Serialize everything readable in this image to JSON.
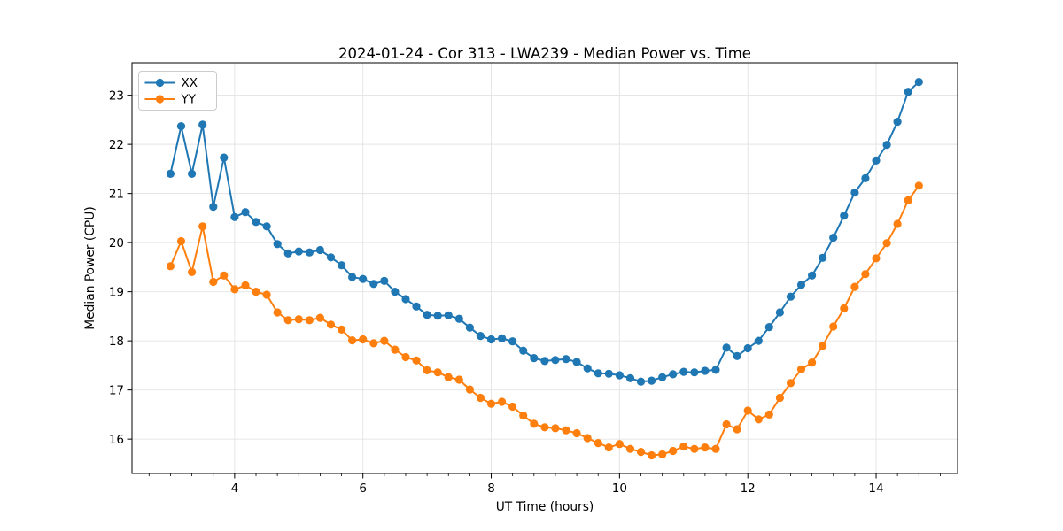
{
  "figure": {
    "title": "2024-01-24 - Cor 313 - LWA239 - Median Power vs. Time"
  },
  "chart_data": {
    "type": "line",
    "title": "2024-01-24 - Cor 313 - LWA239 - Median Power vs. Time",
    "xlabel": "UT Time (hours)",
    "ylabel": "Median Power (CPU)",
    "grid": true,
    "grid_color": "#e3e3e3",
    "background": "#ffffff",
    "legend_position": "upper-left",
    "marker": "circle",
    "xlim": [
      2.4,
      15.27
    ],
    "ylim": [
      15.3,
      23.66
    ],
    "xticks": [
      4,
      6,
      8,
      10,
      12,
      14
    ],
    "yticks": [
      16,
      17,
      18,
      19,
      20,
      21,
      22,
      23
    ],
    "x_minor_step": 0.33333,
    "x": [
      3.0,
      3.167,
      3.333,
      3.5,
      3.667,
      3.833,
      4.0,
      4.167,
      4.333,
      4.5,
      4.667,
      4.833,
      5.0,
      5.167,
      5.333,
      5.5,
      5.667,
      5.833,
      6.0,
      6.167,
      6.333,
      6.5,
      6.667,
      6.833,
      7.0,
      7.167,
      7.333,
      7.5,
      7.667,
      7.833,
      8.0,
      8.167,
      8.333,
      8.5,
      8.667,
      8.833,
      9.0,
      9.167,
      9.333,
      9.5,
      9.667,
      9.833,
      10.0,
      10.167,
      10.333,
      10.5,
      10.667,
      10.833,
      11.0,
      11.167,
      11.333,
      11.5,
      11.667,
      11.833,
      12.0,
      12.167,
      12.333,
      12.5,
      12.667,
      12.833,
      13.0,
      13.167,
      13.333,
      13.5,
      13.667,
      13.833,
      14.0,
      14.167,
      14.333,
      14.5,
      14.667
    ],
    "series": [
      {
        "name": "XX",
        "color": "#1f77b4",
        "values": [
          21.4,
          22.37,
          21.4,
          22.4,
          20.73,
          21.73,
          20.52,
          20.62,
          20.42,
          20.33,
          19.97,
          19.78,
          19.82,
          19.8,
          19.85,
          19.7,
          19.54,
          19.3,
          19.26,
          19.16,
          19.22,
          19.0,
          18.85,
          18.7,
          18.53,
          18.51,
          18.52,
          18.45,
          18.27,
          18.1,
          18.03,
          18.05,
          17.99,
          17.8,
          17.65,
          17.59,
          17.61,
          17.63,
          17.57,
          17.44,
          17.34,
          17.33,
          17.3,
          17.24,
          17.17,
          17.19,
          17.26,
          17.32,
          17.37,
          17.36,
          17.39,
          17.41,
          17.86,
          17.69,
          17.85,
          18.0,
          18.28,
          18.58,
          18.9,
          19.14,
          19.33,
          19.69,
          20.1,
          20.55,
          21.02,
          21.31,
          21.67,
          21.99,
          22.46,
          23.07,
          23.27
        ]
      },
      {
        "name": "YY",
        "color": "#ff7f0e",
        "values": [
          19.52,
          20.03,
          19.4,
          20.33,
          19.2,
          19.33,
          19.05,
          19.13,
          19.0,
          18.94,
          18.58,
          18.42,
          18.44,
          18.42,
          18.47,
          18.33,
          18.23,
          18.01,
          18.03,
          17.95,
          18.0,
          17.82,
          17.67,
          17.6,
          17.4,
          17.36,
          17.26,
          17.21,
          17.01,
          16.84,
          16.72,
          16.76,
          16.66,
          16.48,
          16.31,
          16.24,
          16.22,
          16.18,
          16.12,
          16.02,
          15.92,
          15.83,
          15.9,
          15.8,
          15.74,
          15.67,
          15.69,
          15.76,
          15.85,
          15.8,
          15.83,
          15.8,
          16.3,
          16.2,
          16.58,
          16.4,
          16.5,
          16.84,
          17.14,
          17.42,
          17.56,
          17.9,
          18.29,
          18.66,
          19.1,
          19.36,
          19.68,
          19.99,
          20.38,
          20.86,
          21.16
        ]
      }
    ]
  }
}
